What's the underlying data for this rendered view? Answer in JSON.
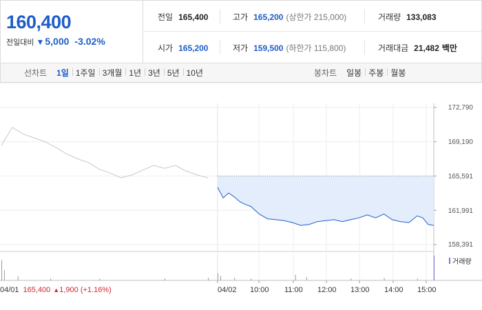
{
  "quote": {
    "current_price": "160,400",
    "change_label": "전일대비",
    "change_direction": "down",
    "change_amount": "5,000",
    "change_percent": "-3.02%",
    "stats": [
      {
        "label": "전일",
        "value": "165,400",
        "sub": ""
      },
      {
        "label": "고가",
        "value": "165,200",
        "sub": "(상한가 215,000)"
      },
      {
        "label": "거래량",
        "value": "133,083",
        "sub": ""
      },
      {
        "label": "시가",
        "value": "165,200",
        "sub": ""
      },
      {
        "label": "저가",
        "value": "159,500",
        "sub": "(하한가 115,800)"
      },
      {
        "label": "거래대금",
        "value": "21,482",
        "sub": "백만"
      }
    ]
  },
  "tabs": {
    "line_title": "선차트",
    "line_periods": [
      "1일",
      "1주일",
      "3개월",
      "1년",
      "3년",
      "5년",
      "10년"
    ],
    "line_active": "1일",
    "candle_title": "봉차트",
    "candle_periods": [
      "일봉",
      "주봉",
      "월봉"
    ]
  },
  "colors": {
    "accent_blue": "#1e5ec8",
    "rise_red": "#d2262e",
    "prev_day_line": "#c8c8c8",
    "fill_area": "#e3edfb",
    "volume_bar": "#8a6fd0"
  },
  "chart_data": {
    "type": "line",
    "y_ticks": [
      "172,790",
      "169,190",
      "165,591",
      "161,991",
      "158,391"
    ],
    "ylim": [
      158391,
      172790
    ],
    "reference_price": 165591,
    "x_ticks": [
      "04/01",
      "04/02",
      "10:00",
      "11:00",
      "12:00",
      "13:00",
      "14:00",
      "15:00"
    ],
    "volume_label": "거래량",
    "prev_day": {
      "date": "04/01",
      "close": "165,400",
      "change": "1,900",
      "change_percent": "(+1.16%)",
      "series": [
        {
          "t": "09:00",
          "v": 168800
        },
        {
          "t": "09:20",
          "v": 170700
        },
        {
          "t": "09:40",
          "v": 170000
        },
        {
          "t": "10:00",
          "v": 169600
        },
        {
          "t": "10:20",
          "v": 169200
        },
        {
          "t": "10:40",
          "v": 168600
        },
        {
          "t": "11:00",
          "v": 167900
        },
        {
          "t": "11:20",
          "v": 167400
        },
        {
          "t": "11:40",
          "v": 167000
        },
        {
          "t": "12:00",
          "v": 166300
        },
        {
          "t": "12:20",
          "v": 165900
        },
        {
          "t": "12:40",
          "v": 165400
        },
        {
          "t": "13:00",
          "v": 165700
        },
        {
          "t": "13:20",
          "v": 166200
        },
        {
          "t": "13:40",
          "v": 166700
        },
        {
          "t": "14:00",
          "v": 166400
        },
        {
          "t": "14:20",
          "v": 166700
        },
        {
          "t": "14:40",
          "v": 166100
        },
        {
          "t": "15:00",
          "v": 165700
        },
        {
          "t": "15:20",
          "v": 165400
        }
      ]
    },
    "today": {
      "date": "04/02",
      "series": [
        {
          "t": "09:00",
          "v": 164400
        },
        {
          "t": "09:10",
          "v": 163300
        },
        {
          "t": "09:20",
          "v": 163800
        },
        {
          "t": "09:30",
          "v": 163400
        },
        {
          "t": "09:40",
          "v": 162900
        },
        {
          "t": "09:50",
          "v": 162600
        },
        {
          "t": "10:00",
          "v": 162400
        },
        {
          "t": "10:15",
          "v": 161600
        },
        {
          "t": "10:30",
          "v": 161100
        },
        {
          "t": "10:45",
          "v": 161000
        },
        {
          "t": "11:00",
          "v": 160900
        },
        {
          "t": "11:15",
          "v": 160700
        },
        {
          "t": "11:30",
          "v": 160400
        },
        {
          "t": "11:45",
          "v": 160500
        },
        {
          "t": "12:00",
          "v": 160800
        },
        {
          "t": "12:15",
          "v": 160900
        },
        {
          "t": "12:30",
          "v": 161000
        },
        {
          "t": "12:45",
          "v": 160800
        },
        {
          "t": "13:00",
          "v": 161000
        },
        {
          "t": "13:15",
          "v": 161200
        },
        {
          "t": "13:30",
          "v": 161500
        },
        {
          "t": "13:45",
          "v": 161200
        },
        {
          "t": "14:00",
          "v": 161600
        },
        {
          "t": "14:15",
          "v": 161000
        },
        {
          "t": "14:30",
          "v": 160800
        },
        {
          "t": "14:45",
          "v": 160700
        },
        {
          "t": "15:00",
          "v": 161400
        },
        {
          "t": "15:10",
          "v": 161200
        },
        {
          "t": "15:20",
          "v": 160500
        },
        {
          "t": "15:30",
          "v": 160400
        }
      ]
    },
    "volume": [
      {
        "day": "04/01",
        "t": "09:00",
        "v": 9000
      },
      {
        "day": "04/01",
        "t": "09:05",
        "v": 4500
      },
      {
        "day": "04/01",
        "t": "09:30",
        "v": 1800
      },
      {
        "day": "04/01",
        "t": "10:30",
        "v": 900
      },
      {
        "day": "04/01",
        "t": "12:00",
        "v": 700
      },
      {
        "day": "04/01",
        "t": "14:00",
        "v": 900
      },
      {
        "day": "04/01",
        "t": "15:20",
        "v": 1200
      },
      {
        "day": "04/02",
        "t": "09:00",
        "v": 3200
      },
      {
        "day": "04/02",
        "t": "09:05",
        "v": 2000
      },
      {
        "day": "04/02",
        "t": "09:30",
        "v": 1200
      },
      {
        "day": "04/02",
        "t": "10:00",
        "v": 800
      },
      {
        "day": "04/02",
        "t": "11:20",
        "v": 2500
      },
      {
        "day": "04/02",
        "t": "11:40",
        "v": 1500
      },
      {
        "day": "04/02",
        "t": "13:00",
        "v": 900
      },
      {
        "day": "04/02",
        "t": "14:00",
        "v": 1000
      },
      {
        "day": "04/02",
        "t": "15:00",
        "v": 800
      },
      {
        "day": "04/02",
        "t": "15:30",
        "v": 11000
      }
    ]
  }
}
